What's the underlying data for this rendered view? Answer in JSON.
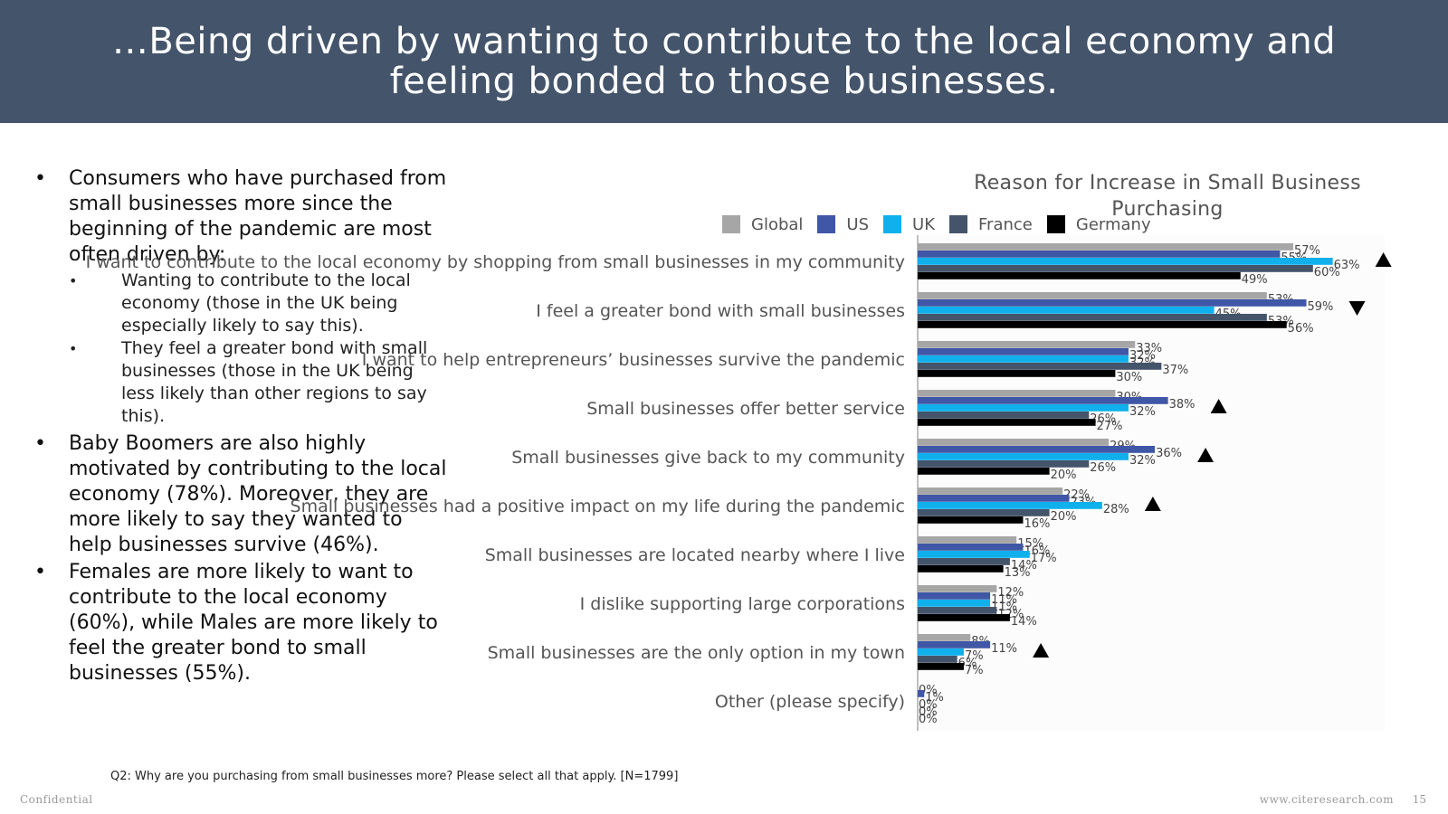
{
  "header": {
    "title": "…Being driven by wanting to contribute to the local economy and feeling bonded to those businesses."
  },
  "bullets": [
    {
      "text": "Consumers who have purchased from small businesses more since the beginning of the pandemic are most often driven by:",
      "subs": [
        "Wanting to contribute to the local economy (those in the UK being especially likely to say this).",
        "They feel a greater bond with small businesses (those in the UK being less likely than other regions to say this)."
      ]
    },
    {
      "text": "Baby Boomers are also highly motivated by contributing to the local economy (78%).  Moreover, they are more likely to say they wanted to help businesses survive (46%).",
      "subs": []
    },
    {
      "text": "Females are more likely to want to contribute to the local economy (60%), while Males are more likely to feel the greater bond to small businesses (55%).",
      "subs": []
    }
  ],
  "chart_data": {
    "type": "bar",
    "orientation": "horizontal",
    "title": "Reason for Increase in Small Business Purchasing",
    "legend_position": "top",
    "xlim": [
      0,
      75
    ],
    "grid": false,
    "categories": [
      "I want to contribute to the local economy by shopping from small businesses in my community",
      "I feel a greater bond with small businesses",
      "I want to help entrepreneurs’ businesses survive the pandemic",
      "Small businesses offer better service",
      "Small businesses give back to my community",
      "Small businesses had a positive impact on my life during the pandemic",
      "Small businesses are located nearby where I live",
      "I dislike supporting large corporations",
      "Small businesses are the only option in my town",
      "Other (please specify)"
    ],
    "series": [
      {
        "name": "Global",
        "color": "#a6a6a6",
        "values": [
          57,
          53,
          33,
          30,
          29,
          22,
          15,
          12,
          8,
          0
        ]
      },
      {
        "name": "US",
        "color": "#3f57a6",
        "values": [
          55,
          59,
          32,
          38,
          36,
          23,
          16,
          11,
          11,
          1
        ]
      },
      {
        "name": "UK",
        "color": "#10b0ec",
        "values": [
          63,
          45,
          32,
          32,
          32,
          28,
          17,
          11,
          7,
          0
        ]
      },
      {
        "name": "France",
        "color": "#44546a",
        "values": [
          60,
          53,
          37,
          26,
          26,
          20,
          14,
          12,
          6,
          0
        ]
      },
      {
        "name": "Germany",
        "color": "#000000",
        "values": [
          49,
          56,
          30,
          27,
          20,
          16,
          13,
          14,
          7,
          0
        ]
      }
    ],
    "value_suffix": "%",
    "markers": [
      {
        "category_index": 0,
        "direction": "up"
      },
      {
        "category_index": 1,
        "direction": "down"
      },
      {
        "category_index": 3,
        "direction": "up"
      },
      {
        "category_index": 4,
        "direction": "up"
      },
      {
        "category_index": 5,
        "direction": "up"
      },
      {
        "category_index": 8,
        "direction": "up"
      }
    ]
  },
  "footer": {
    "footnote": "Q2: Why are you purchasing from small businesses more? Please select all that apply. [N=1799]",
    "confidential": "Confidential",
    "website": "www.citeresearch.com",
    "page_number": "15"
  }
}
